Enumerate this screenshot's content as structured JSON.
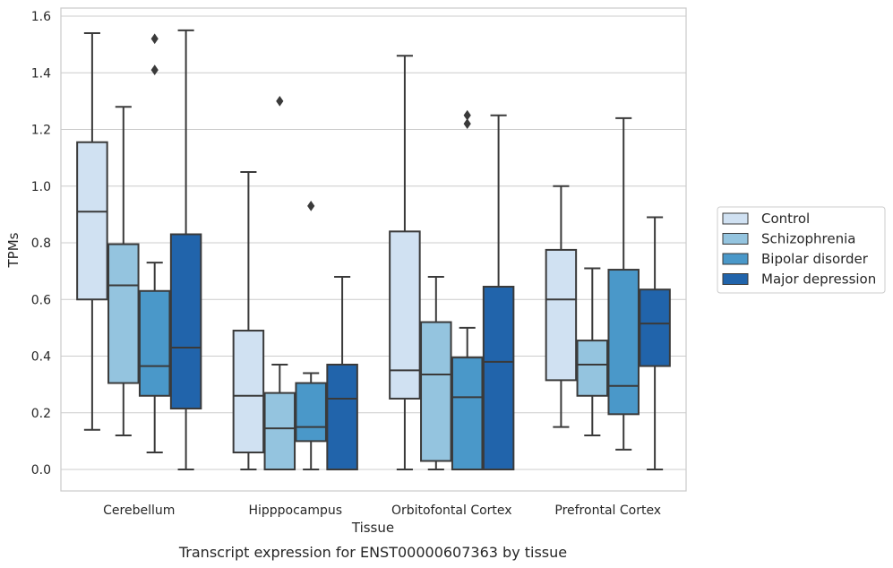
{
  "caption": "Transcript expression for ENST00000607363 by tissue",
  "colors": {
    "series": [
      "#d0e1f2",
      "#94c4df",
      "#4a98c9",
      "#2164ab"
    ],
    "line": "#3a3a3a",
    "grid": "#cccccc",
    "frame": "#cccccc"
  },
  "chart_data": {
    "type": "box",
    "xlabel": "Tissue",
    "ylabel": "TPMs",
    "ylim": [
      -0.075,
      1.63
    ],
    "yticks": [
      "0.0",
      "0.2",
      "0.4",
      "0.6",
      "0.8",
      "1.0",
      "1.2",
      "1.4",
      "1.6"
    ],
    "grid": true,
    "legend_position": "right",
    "categories": [
      "Cerebellum",
      "Hipppocampus",
      "Orbitofontal Cortex",
      "Prefrontal Cortex"
    ],
    "series": [
      {
        "name": "Control",
        "boxes": [
          {
            "whislo": 0.14,
            "q1": 0.6,
            "med": 0.91,
            "q3": 1.155,
            "whishi": 1.54,
            "fliers": []
          },
          {
            "whislo": 0.0,
            "q1": 0.06,
            "med": 0.26,
            "q3": 0.49,
            "whishi": 1.05,
            "fliers": []
          },
          {
            "whislo": 0.0,
            "q1": 0.25,
            "med": 0.35,
            "q3": 0.84,
            "whishi": 1.46,
            "fliers": []
          },
          {
            "whislo": 0.15,
            "q1": 0.315,
            "med": 0.6,
            "q3": 0.775,
            "whishi": 1.0,
            "fliers": []
          }
        ]
      },
      {
        "name": "Schizophrenia",
        "boxes": [
          {
            "whislo": 0.12,
            "q1": 0.305,
            "med": 0.65,
            "q3": 0.795,
            "whishi": 1.28,
            "fliers": []
          },
          {
            "whislo": 0.0,
            "q1": 0.0,
            "med": 0.145,
            "q3": 0.27,
            "whishi": 0.37,
            "fliers": [
              1.3
            ]
          },
          {
            "whislo": 0.0,
            "q1": 0.03,
            "med": 0.335,
            "q3": 0.52,
            "whishi": 0.68,
            "fliers": []
          },
          {
            "whislo": 0.12,
            "q1": 0.26,
            "med": 0.37,
            "q3": 0.455,
            "whishi": 0.71,
            "fliers": []
          }
        ]
      },
      {
        "name": "Bipolar disorder",
        "boxes": [
          {
            "whislo": 0.06,
            "q1": 0.26,
            "med": 0.365,
            "q3": 0.63,
            "whishi": 0.73,
            "fliers": [
              1.41,
              1.52
            ]
          },
          {
            "whislo": 0.0,
            "q1": 0.1,
            "med": 0.15,
            "q3": 0.305,
            "whishi": 0.34,
            "fliers": [
              0.93
            ]
          },
          {
            "whislo": 0.0,
            "q1": 0.0,
            "med": 0.255,
            "q3": 0.395,
            "whishi": 0.5,
            "fliers": [
              1.22,
              1.25
            ]
          },
          {
            "whislo": 0.07,
            "q1": 0.195,
            "med": 0.295,
            "q3": 0.705,
            "whishi": 1.24,
            "fliers": []
          }
        ]
      },
      {
        "name": "Major depression",
        "boxes": [
          {
            "whislo": 0.0,
            "q1": 0.215,
            "med": 0.43,
            "q3": 0.83,
            "whishi": 1.55,
            "fliers": []
          },
          {
            "whislo": 0.0,
            "q1": 0.0,
            "med": 0.25,
            "q3": 0.37,
            "whishi": 0.68,
            "fliers": []
          },
          {
            "whislo": 0.0,
            "q1": 0.0,
            "med": 0.38,
            "q3": 0.645,
            "whishi": 1.25,
            "fliers": []
          },
          {
            "whislo": 0.0,
            "q1": 0.365,
            "med": 0.515,
            "q3": 0.635,
            "whishi": 0.89,
            "fliers": []
          }
        ]
      }
    ]
  }
}
